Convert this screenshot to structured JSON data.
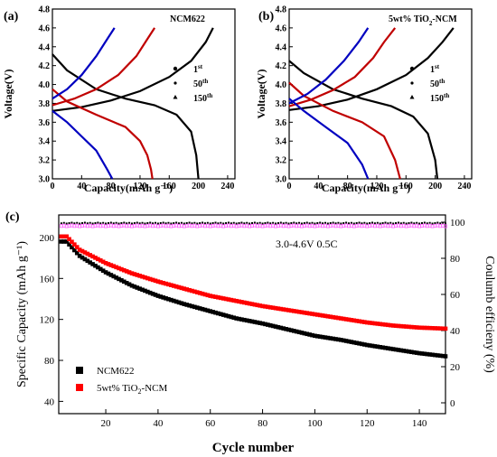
{
  "chart_data": [
    {
      "type": "line",
      "panel_label": "(a)",
      "title": "NCM622",
      "xlabel": "Capacity(mAh g⁻¹)",
      "ylabel": "Voltage(V)",
      "xlim": [
        0,
        250
      ],
      "ylim": [
        3.0,
        4.8
      ],
      "xticks": [
        0,
        40,
        80,
        120,
        160,
        200,
        240
      ],
      "yticks": [
        3.0,
        3.2,
        3.4,
        3.6,
        3.8,
        4.0,
        4.2,
        4.4,
        4.6,
        4.8
      ],
      "legend": {
        "placement": "right",
        "entries": [
          {
            "base": "1",
            "sup": "st",
            "marker": "circle"
          },
          {
            "base": "50",
            "sup": "th",
            "marker": "circle-small"
          },
          {
            "base": "150",
            "sup": "th",
            "marker": "triangle"
          }
        ]
      },
      "series": [
        {
          "color": "#000000",
          "charge": {
            "x": [
              0,
              40,
              80,
              120,
              160,
              190,
              210,
              220
            ],
            "y": [
              3.72,
              3.76,
              3.83,
              3.93,
              4.08,
              4.25,
              4.45,
              4.6
            ]
          },
          "discharge": {
            "x": [
              0,
              20,
              60,
              100,
              140,
              170,
              190,
              197,
              200
            ],
            "y": [
              4.32,
              4.15,
              3.95,
              3.85,
              3.78,
              3.68,
              3.5,
              3.25,
              3.0
            ]
          }
        },
        {
          "color": "#c00000",
          "charge": {
            "x": [
              0,
              30,
              60,
              90,
              115,
              130,
              140
            ],
            "y": [
              3.78,
              3.85,
              3.95,
              4.1,
              4.3,
              4.48,
              4.6
            ]
          },
          "discharge": {
            "x": [
              0,
              20,
              60,
              100,
              120,
              130,
              135,
              137
            ],
            "y": [
              3.95,
              3.82,
              3.68,
              3.55,
              3.4,
              3.25,
              3.1,
              3.0
            ]
          }
        },
        {
          "color": "#0000c0",
          "charge": {
            "x": [
              0,
              20,
              40,
              60,
              75,
              85
            ],
            "y": [
              3.85,
              3.95,
              4.1,
              4.3,
              4.48,
              4.6
            ]
          },
          "discharge": {
            "x": [
              0,
              20,
              40,
              60,
              75,
              82
            ],
            "y": [
              3.72,
              3.6,
              3.45,
              3.3,
              3.1,
              3.0
            ]
          }
        }
      ]
    },
    {
      "type": "line",
      "panel_label": "(b)",
      "title_html": "5wt% TiO<tspan baseline-shift=\"sub\" font-size=\"7\">2</tspan>-NCM",
      "title": "5wt% TiO2-NCM",
      "xlabel": "Capacity(mAh g⁻¹)",
      "ylabel": "Voltage(V)",
      "xlim": [
        0,
        250
      ],
      "ylim": [
        3.0,
        4.8
      ],
      "xticks": [
        0,
        40,
        80,
        120,
        160,
        200,
        240
      ],
      "yticks": [
        3.0,
        3.2,
        3.4,
        3.6,
        3.8,
        4.0,
        4.2,
        4.4,
        4.6,
        4.8
      ],
      "legend": {
        "placement": "right",
        "entries": [
          {
            "base": "1",
            "sup": "st",
            "marker": "circle"
          },
          {
            "base": "50",
            "sup": "th",
            "marker": "circle-small"
          },
          {
            "base": "150",
            "sup": "th",
            "marker": "triangle"
          }
        ]
      },
      "series": [
        {
          "color": "#000000",
          "charge": {
            "x": [
              0,
              40,
              80,
              120,
              160,
              190,
              210,
              225
            ],
            "y": [
              3.73,
              3.77,
              3.84,
              3.95,
              4.1,
              4.28,
              4.45,
              4.6
            ]
          },
          "discharge": {
            "x": [
              0,
              20,
              60,
              100,
              140,
              170,
              190,
              200,
              203
            ],
            "y": [
              4.25,
              4.12,
              3.95,
              3.85,
              3.77,
              3.66,
              3.48,
              3.2,
              3.0
            ]
          }
        },
        {
          "color": "#c00000",
          "charge": {
            "x": [
              0,
              30,
              60,
              90,
              115,
              130,
              145
            ],
            "y": [
              3.77,
              3.84,
              3.94,
              4.08,
              4.28,
              4.45,
              4.6
            ]
          },
          "discharge": {
            "x": [
              0,
              20,
              60,
              100,
              130,
              145,
              152
            ],
            "y": [
              4.02,
              3.88,
              3.72,
              3.6,
              3.45,
              3.2,
              3.0
            ]
          }
        },
        {
          "color": "#0000c0",
          "charge": {
            "x": [
              0,
              25,
              50,
              75,
              95,
              108
            ],
            "y": [
              3.8,
              3.9,
              4.05,
              4.25,
              4.45,
              4.6
            ]
          },
          "discharge": {
            "x": [
              0,
              20,
              50,
              80,
              100,
              108
            ],
            "y": [
              3.85,
              3.72,
              3.55,
              3.38,
              3.15,
              3.0
            ]
          }
        }
      ]
    },
    {
      "type": "scatter",
      "panel_label": "(c)",
      "annotation": "3.0-4.6V 0.5C",
      "xlabel": "Cycle number",
      "ylabel": "Specific Capacity (mAh g⁻¹)",
      "ylabel_right": "Coulumb efficieny (%)",
      "xlim": [
        2,
        150
      ],
      "ylim": [
        28,
        222
      ],
      "ylim_right": [
        -6,
        104
      ],
      "xticks": [
        20,
        40,
        60,
        80,
        100,
        120,
        140
      ],
      "yticks": [
        40,
        80,
        120,
        160,
        200
      ],
      "yticks_right": [
        0,
        20,
        40,
        60,
        80,
        100
      ],
      "legend": {
        "placement": "bottom-left"
      },
      "series": [
        {
          "name": "NCM622",
          "color": "#000000",
          "marker": "square",
          "x": [
            5,
            10,
            20,
            30,
            40,
            50,
            60,
            70,
            80,
            90,
            100,
            110,
            120,
            130,
            140,
            150
          ],
          "y": [
            196,
            182,
            166,
            153,
            143,
            135,
            128,
            121,
            116,
            110,
            104,
            100,
            95,
            91,
            87,
            84
          ]
        },
        {
          "name_base": "5wt% TiO",
          "name_sub": "2",
          "name_tail": "-NCM",
          "color": "#ff0000",
          "marker": "square",
          "x": [
            5,
            10,
            20,
            30,
            40,
            50,
            60,
            70,
            80,
            90,
            100,
            110,
            120,
            130,
            140,
            150
          ],
          "y": [
            201,
            188,
            175,
            165,
            157,
            150,
            143,
            138,
            133,
            129,
            125,
            121,
            117,
            114,
            112,
            111
          ]
        }
      ],
      "efficiency_series": [
        {
          "color": "#000000",
          "y": 99.5
        },
        {
          "color": "#ff66ff",
          "y": 98.0
        }
      ]
    }
  ]
}
